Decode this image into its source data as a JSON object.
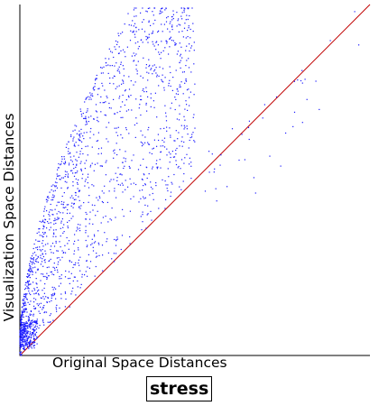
{
  "chart_data": {
    "type": "scatter",
    "title": "",
    "xlabel": "Original Space Distances",
    "ylabel": "Visualization Space Distances",
    "xlim": [
      0,
      1
    ],
    "ylim": [
      0,
      1
    ],
    "reference_line": {
      "from": [
        0,
        0
      ],
      "to": [
        1,
        1
      ],
      "color": "#c00000"
    },
    "point_color": "#1a1aff",
    "axis_color": "#000000",
    "grid": false,
    "legend": "none",
    "badge": "stress"
  }
}
